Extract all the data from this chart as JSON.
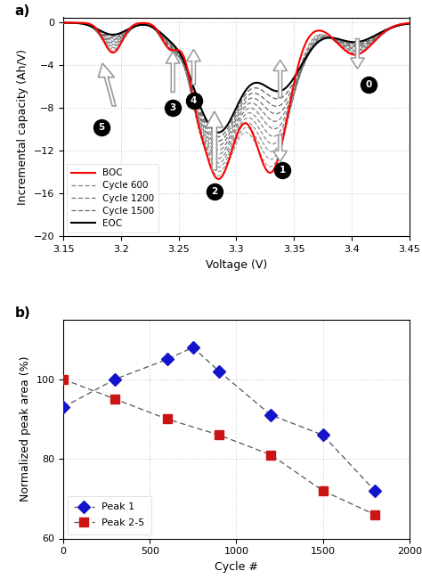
{
  "panel_a": {
    "xlim": [
      3.15,
      3.45
    ],
    "ylim": [
      -20,
      0.5
    ],
    "xlabel": "Voltage (V)",
    "ylabel": "Incremental capacity (Ah/V)",
    "yticks": [
      0,
      -4,
      -8,
      -12,
      -16,
      -20
    ],
    "xticks": [
      3.15,
      3.2,
      3.25,
      3.3,
      3.35,
      3.4,
      3.45
    ],
    "xtick_labels": [
      "3.15",
      "3.2",
      "3.25",
      "3.3",
      "3.35",
      "3.4",
      "3.45"
    ]
  },
  "panel_b": {
    "peak1_x": [
      0,
      300,
      600,
      750,
      900,
      1200,
      1500,
      1800
    ],
    "peak1_y": [
      93,
      100,
      105,
      108,
      102,
      91,
      86,
      72
    ],
    "peak25_x": [
      0,
      300,
      600,
      900,
      1200,
      1500,
      1800
    ],
    "peak25_y": [
      100,
      95,
      90,
      86,
      81,
      72,
      66
    ],
    "xlim": [
      0,
      2000
    ],
    "ylim": [
      60,
      115
    ],
    "yticks": [
      60,
      80,
      100
    ],
    "xticks": [
      0,
      500,
      1000,
      1500,
      2000
    ],
    "xlabel": "Cycle #",
    "ylabel": "Normalized peak area (%)",
    "peak1_color": "#1414CC",
    "peak25_color": "#CC1414",
    "line_color": "#555555"
  }
}
